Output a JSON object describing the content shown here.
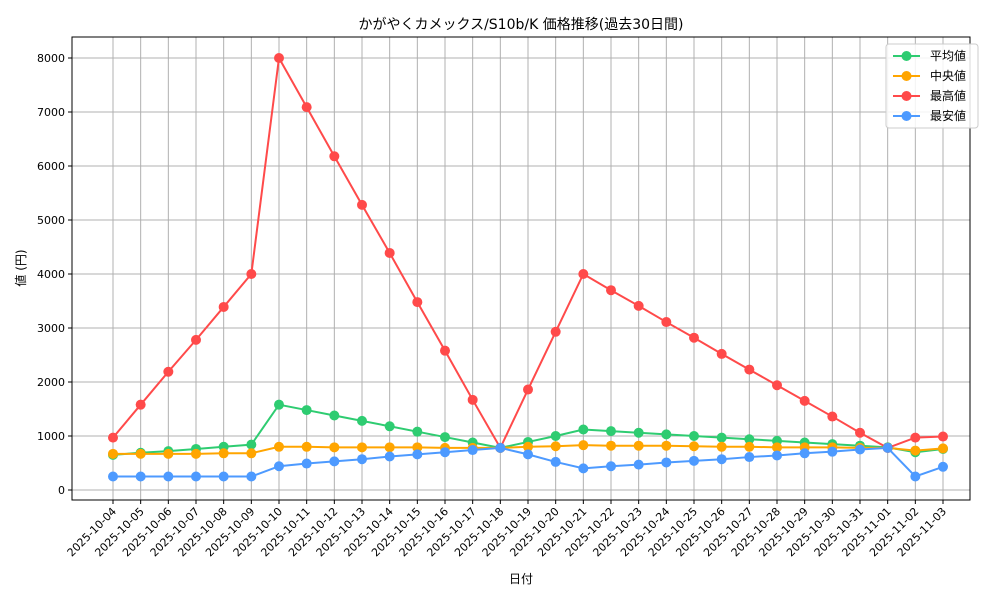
{
  "chart_data": {
    "type": "line",
    "title": "かがやくカメックス/S10b/K 価格推移(過去30日間)",
    "xlabel": "日付",
    "ylabel": "値 (円)",
    "ylim": [
      0,
      8400
    ],
    "yticks": [
      0,
      1000,
      2000,
      3000,
      4000,
      5000,
      6000,
      7000,
      8000
    ],
    "grid": true,
    "legend_position": "top-right",
    "x": [
      "2025-10-04",
      "2025-10-05",
      "2025-10-06",
      "2025-10-07",
      "2025-10-08",
      "2025-10-09",
      "2025-10-10",
      "2025-10-11",
      "2025-10-12",
      "2025-10-13",
      "2025-10-14",
      "2025-10-15",
      "2025-10-16",
      "2025-10-17",
      "2025-10-18",
      "2025-10-19",
      "2025-10-20",
      "2025-10-21",
      "2025-10-22",
      "2025-10-23",
      "2025-10-24",
      "2025-10-25",
      "2025-10-26",
      "2025-10-27",
      "2025-10-28",
      "2025-10-29",
      "2025-10-30",
      "2025-10-31",
      "2025-11-01",
      "2025-11-02",
      "2025-11-03"
    ],
    "series": [
      {
        "name": "平均値",
        "color": "#2ecc71",
        "values": [
          650,
          690,
          720,
          760,
          800,
          840,
          1580,
          1480,
          1380,
          1280,
          1180,
          1080,
          980,
          880,
          780,
          890,
          1000,
          1120,
          1090,
          1060,
          1030,
          1000,
          970,
          940,
          910,
          880,
          850,
          820,
          790,
          700,
          760
        ]
      },
      {
        "name": "中央値",
        "color": "#ffa500",
        "values": [
          670,
          670,
          670,
          670,
          680,
          680,
          800,
          800,
          790,
          790,
          790,
          790,
          780,
          780,
          780,
          800,
          810,
          830,
          820,
          820,
          820,
          810,
          800,
          800,
          790,
          790,
          790,
          780,
          780,
          730,
          770
        ]
      },
      {
        "name": "最高値",
        "color": "#ff4a4a",
        "values": [
          970,
          1580,
          2190,
          2780,
          3390,
          4000,
          8000,
          7090,
          6180,
          5280,
          4390,
          3480,
          2580,
          1670,
          780,
          1860,
          2930,
          4000,
          3700,
          3410,
          3110,
          2820,
          2520,
          2230,
          1940,
          1650,
          1360,
          1060,
          780,
          970,
          990
        ]
      },
      {
        "name": "最安値",
        "color": "#4d9aff",
        "values": [
          250,
          250,
          250,
          250,
          250,
          250,
          440,
          490,
          530,
          570,
          620,
          660,
          700,
          740,
          780,
          660,
          520,
          400,
          440,
          470,
          510,
          540,
          570,
          610,
          640,
          680,
          710,
          750,
          780,
          250,
          430
        ]
      }
    ]
  }
}
